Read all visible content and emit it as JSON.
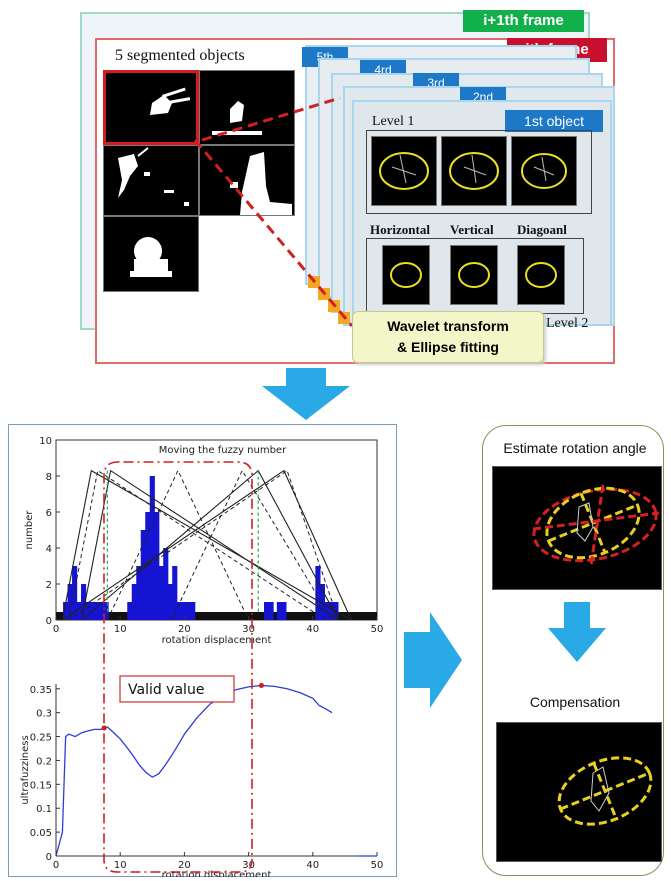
{
  "top": {
    "frame_next": "i+1th frame",
    "frame_current": "ith frame",
    "segmented_title": "5 segmented objects",
    "order_5": "5th",
    "order_4": "4rd",
    "order_3": "3rd",
    "order_2": "2nd",
    "first_object": "1st object",
    "level1": "Level 1",
    "level2": "Level 2",
    "horizontal": "Horizontal",
    "vertical": "Vertical",
    "diagonal": "Diagoanl",
    "wavelet_line1": "Wavelet transform",
    "wavelet_line2": "& Ellipse fitting"
  },
  "right": {
    "estimate": "Estimate rotation angle",
    "compensation": "Compensation"
  },
  "colors": {
    "green_tag": "#12b04a",
    "red_tag": "#c8102e",
    "blue_tag": "#1e78c8",
    "flow_arrow": "#29a9e6",
    "bar_blue": "#1414d2",
    "dash_red": "#d02020",
    "wavelet_box": "#f3f6c8"
  },
  "chart_data": [
    {
      "type": "bar",
      "title": "Moving the fuzzy number",
      "xlabel": "rotation displacement",
      "ylabel": "number",
      "xlim": [
        0,
        50
      ],
      "ylim": [
        0,
        10
      ],
      "xticks": [
        0,
        10,
        20,
        30,
        40,
        50
      ],
      "yticks": [
        0,
        2,
        4,
        6,
        8,
        10
      ],
      "bar_width": 0.8,
      "bars": [
        {
          "x": 1.5,
          "y": 1
        },
        {
          "x": 2.2,
          "y": 2
        },
        {
          "x": 2.9,
          "y": 3
        },
        {
          "x": 3.6,
          "y": 1
        },
        {
          "x": 4.3,
          "y": 2
        },
        {
          "x": 5.0,
          "y": 1
        },
        {
          "x": 5.7,
          "y": 1
        },
        {
          "x": 6.4,
          "y": 1
        },
        {
          "x": 7.1,
          "y": 1
        },
        {
          "x": 7.8,
          "y": 1
        },
        {
          "x": 11.5,
          "y": 1
        },
        {
          "x": 12.2,
          "y": 2
        },
        {
          "x": 12.9,
          "y": 3
        },
        {
          "x": 13.6,
          "y": 5
        },
        {
          "x": 14.3,
          "y": 6
        },
        {
          "x": 15.0,
          "y": 8
        },
        {
          "x": 15.7,
          "y": 6
        },
        {
          "x": 16.4,
          "y": 3
        },
        {
          "x": 17.1,
          "y": 4
        },
        {
          "x": 17.8,
          "y": 2
        },
        {
          "x": 18.5,
          "y": 3
        },
        {
          "x": 19.2,
          "y": 1
        },
        {
          "x": 19.9,
          "y": 1
        },
        {
          "x": 20.6,
          "y": 1
        },
        {
          "x": 21.3,
          "y": 1
        },
        {
          "x": 32.8,
          "y": 1
        },
        {
          "x": 33.5,
          "y": 1
        },
        {
          "x": 34.8,
          "y": 1
        },
        {
          "x": 35.5,
          "y": 1
        },
        {
          "x": 40.8,
          "y": 3
        },
        {
          "x": 41.5,
          "y": 2
        },
        {
          "x": 42.2,
          "y": 1
        },
        {
          "x": 42.9,
          "y": 1
        },
        {
          "x": 43.6,
          "y": 1
        }
      ],
      "fuzzy_solid": [
        [
          [
            1,
            0
          ],
          [
            5.5,
            8.3
          ],
          [
            46,
            0
          ]
        ],
        [
          [
            4,
            0
          ],
          [
            8.5,
            8.3
          ],
          [
            44,
            0
          ]
        ],
        [
          [
            4,
            0
          ],
          [
            31.5,
            8.3
          ],
          [
            44,
            0
          ]
        ],
        [
          [
            1,
            0
          ],
          [
            35.5,
            8.3
          ],
          [
            46,
            0
          ]
        ]
      ],
      "fuzzy_dashed": [
        [
          [
            2,
            0
          ],
          [
            6.5,
            8.3
          ],
          [
            42,
            0
          ]
        ],
        [
          [
            8,
            0
          ],
          [
            19,
            8.3
          ],
          [
            30,
            0
          ]
        ],
        [
          [
            18,
            0
          ],
          [
            29,
            8.3
          ],
          [
            43,
            0
          ]
        ],
        [
          [
            2,
            0
          ],
          [
            36,
            8.3
          ],
          [
            44,
            0
          ]
        ]
      ],
      "green_dashed_x": [
        8,
        31.5
      ]
    },
    {
      "type": "line",
      "xlabel": "rotation displacement",
      "ylabel": "ultrafuzziness",
      "annotation": "Valid value",
      "xlim": [
        0,
        50
      ],
      "ylim": [
        0,
        0.36
      ],
      "xticks": [
        0,
        10,
        20,
        30,
        40,
        50
      ],
      "yticks": [
        0,
        0.05,
        0.1,
        0.15,
        0.2,
        0.25,
        0.3,
        0.35
      ],
      "x": [
        0,
        1,
        1.5,
        2,
        3,
        4,
        5,
        6,
        7,
        7.5,
        8,
        9,
        10,
        11,
        12,
        13,
        14,
        15,
        16,
        17,
        18,
        19,
        20,
        22,
        24,
        26,
        28,
        30,
        32,
        34,
        36,
        38,
        40,
        41,
        42,
        43
      ],
      "y": [
        0,
        0.05,
        0.25,
        0.255,
        0.25,
        0.258,
        0.262,
        0.265,
        0.265,
        0.268,
        0.27,
        0.258,
        0.245,
        0.228,
        0.21,
        0.19,
        0.175,
        0.165,
        0.172,
        0.19,
        0.21,
        0.232,
        0.255,
        0.29,
        0.318,
        0.337,
        0.348,
        0.354,
        0.357,
        0.355,
        0.35,
        0.342,
        0.33,
        0.315,
        0.308,
        0.3
      ],
      "markers": [
        {
          "x": 7.5,
          "y": 0.268
        },
        {
          "x": 32,
          "y": 0.357
        }
      ],
      "valid_range": [
        8,
        31.5
      ]
    }
  ]
}
